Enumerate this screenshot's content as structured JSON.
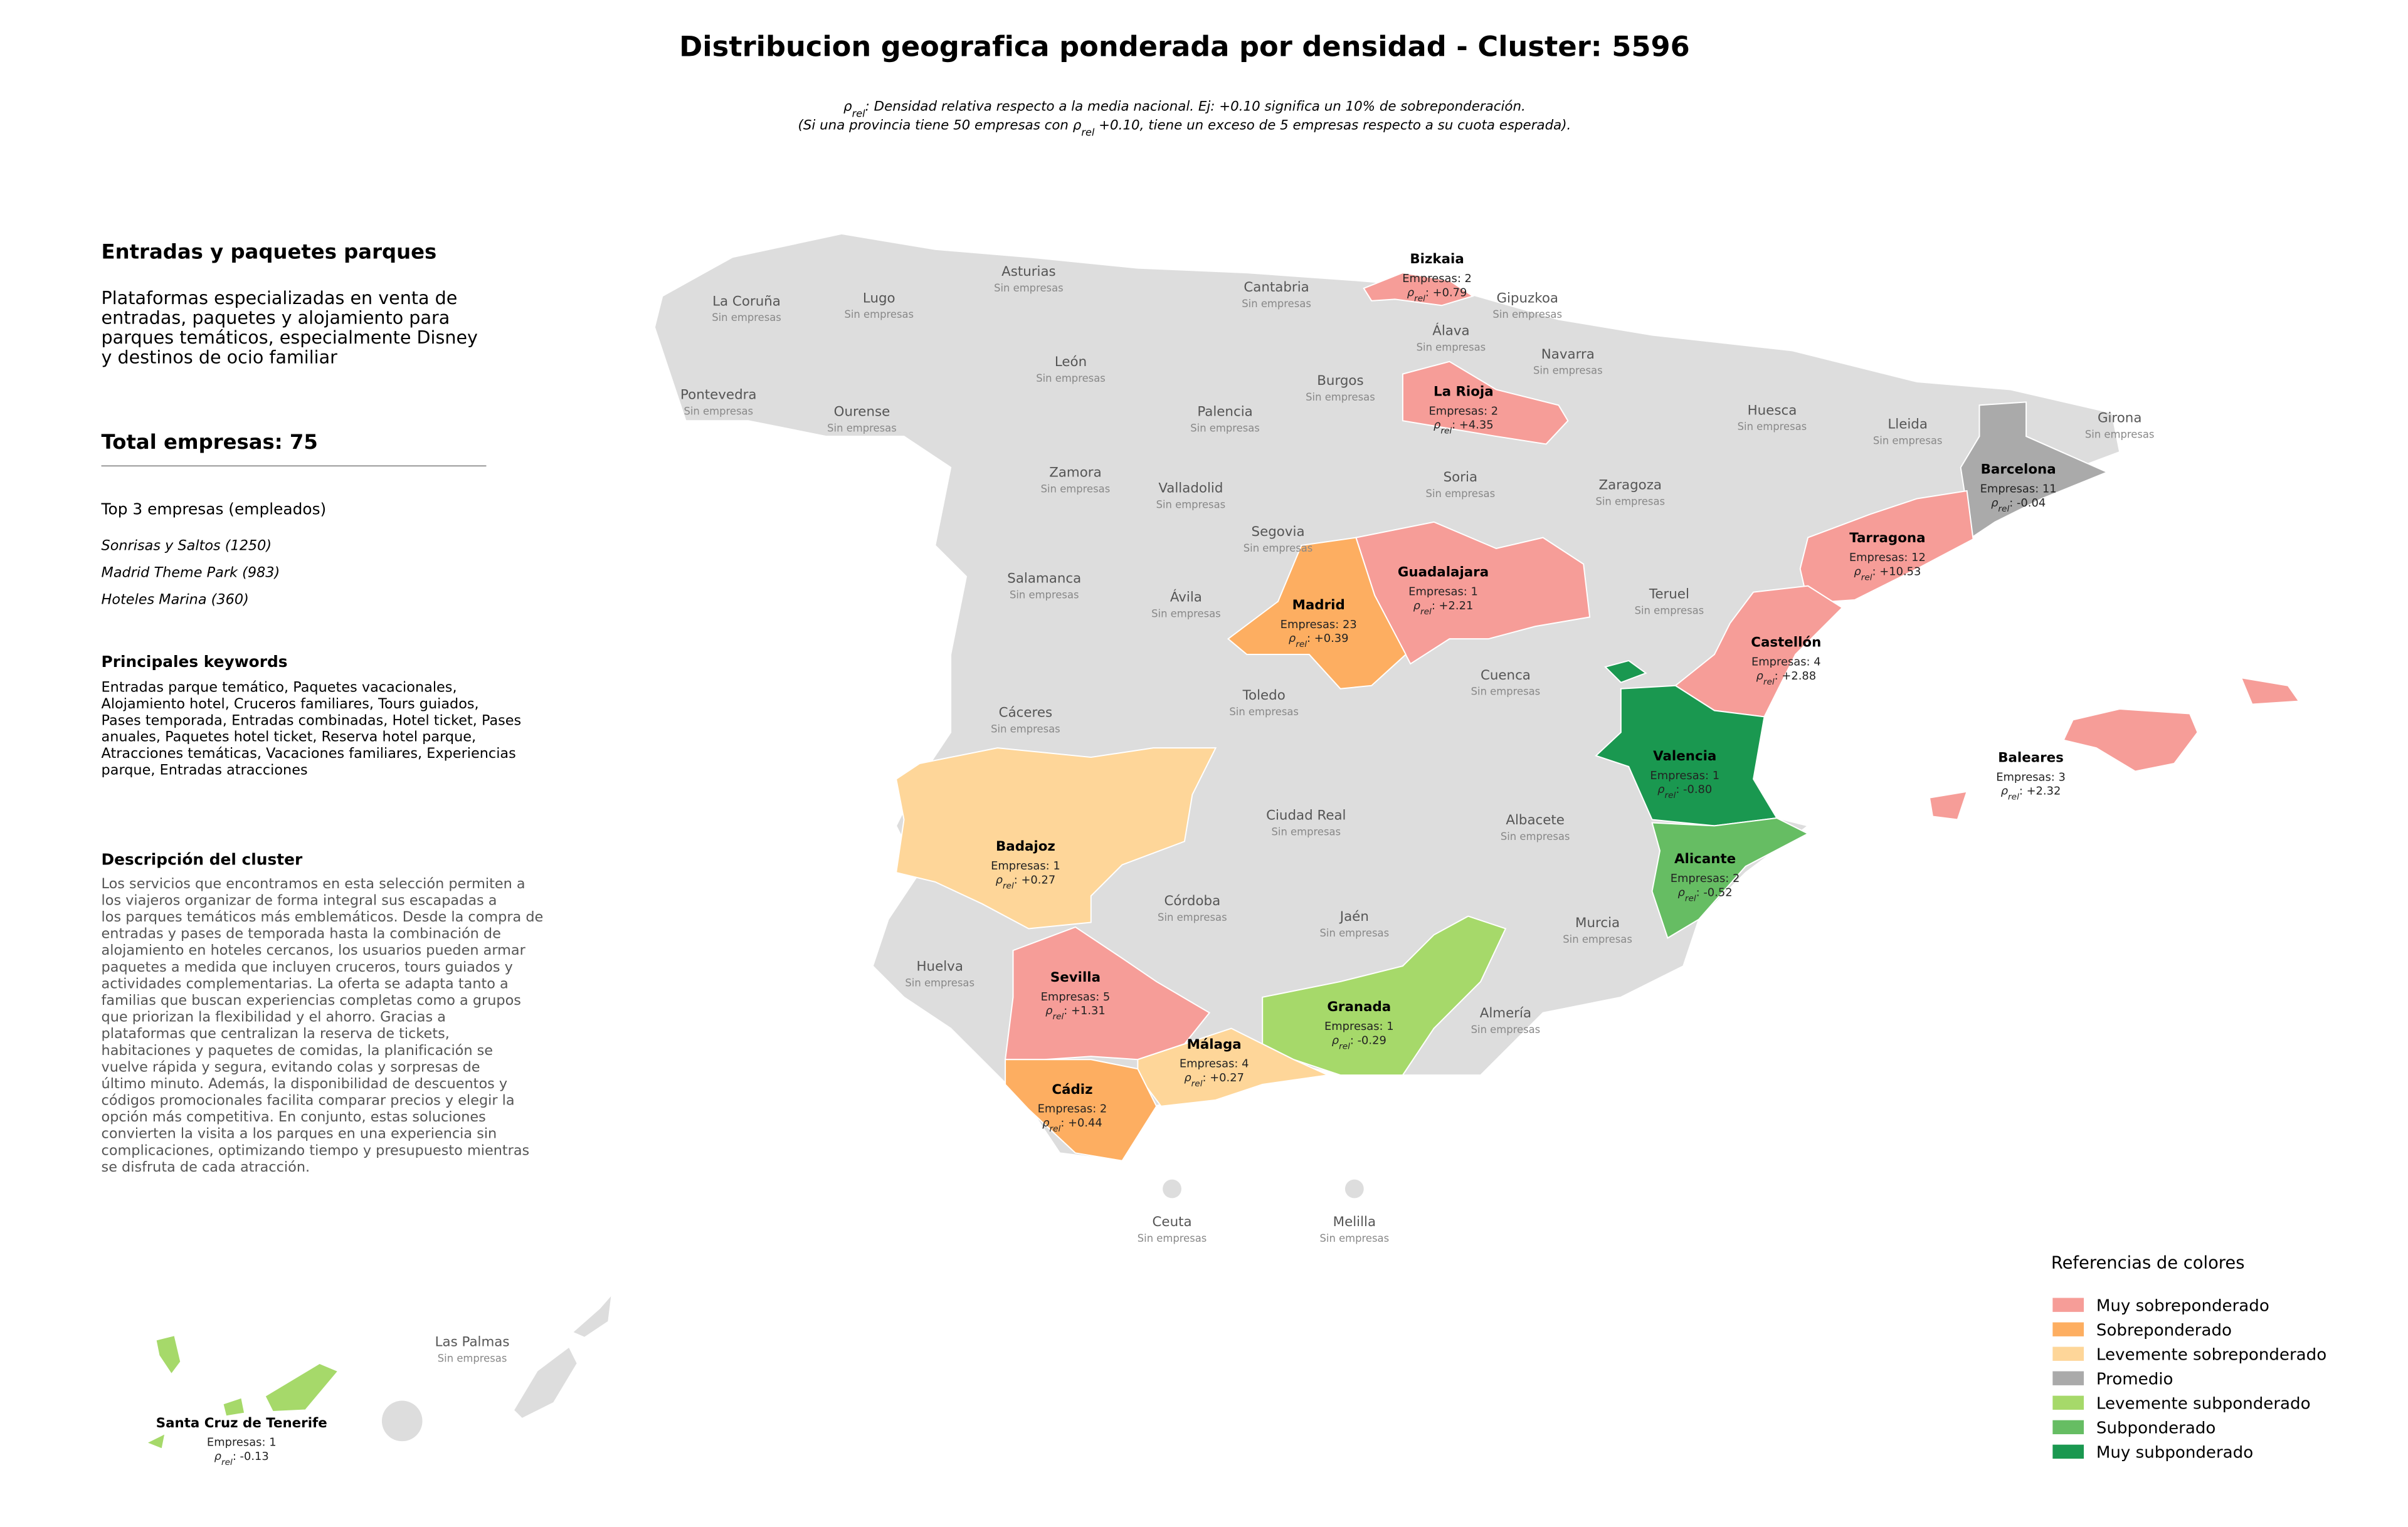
{
  "header": {
    "title": "Distribucion geografica ponderada por densidad - Cluster: 5596",
    "subtitle_lines": [
      [
        "",
        "ρ",
        "rel",
        ": Densidad relativa respecto a la media nacional. Ej: +0.10 significa un 10% de sobreponderación."
      ],
      [
        "(Si una provincia tiene 50 empresas con ",
        "ρ",
        "rel",
        " +0.10, tiene un exceso de 5 empresas respecto a su cuota esperada)."
      ]
    ]
  },
  "panel": {
    "heading": "Entradas y paquetes parques",
    "summary_lines": [
      "Plataformas especializadas en venta de",
      "entradas, paquetes y alojamiento para",
      "parques temáticos, especialmente Disney",
      "y destinos de ocio familiar"
    ],
    "total": "Total empresas: 75",
    "top_heading": "Top 3 empresas (empleados)",
    "top_items": [
      "Sonrisas y Saltos (1250)",
      "Madrid Theme Park (983)",
      "Hoteles Marina (360)"
    ],
    "keywords_heading": "Principales keywords",
    "keywords_lines": [
      "Entradas parque temático, Paquetes vacacionales,",
      "Alojamiento hotel, Cruceros familiares, Tours guiados,",
      "Pases temporada, Entradas combinadas, Hotel ticket, Pases",
      "anuales, Paquetes hotel ticket, Reserva hotel parque,",
      "Atracciones temáticas, Vacaciones familiares, Experiencias",
      "parque, Entradas atracciones"
    ],
    "description_heading": "Descripción del cluster",
    "description_lines": [
      "Los servicios que encontramos en esta selección permiten a",
      "los viajeros organizar de forma integral sus escapadas a",
      "los parques temáticos más emblemáticos. Desde la compra de",
      "entradas y pases de temporada hasta la combinación de",
      "alojamiento en hoteles cercanos, los usuarios pueden armar",
      "paquetes a medida que incluyen cruceros, tours guiados y",
      "actividades complementarias. La oferta se adapta tanto a",
      "familias que buscan experiencias completas como a grupos",
      "que priorizan la flexibilidad y el ahorro. Gracias a",
      "plataformas que centralizan la reserva de tickets,",
      "habitaciones y paquetes de comidas, la planificación se",
      "vuelve rápida y segura, evitando colas y sorpresas de",
      "último minuto. Además, la disponibilidad de descuentos y",
      "códigos promocionales facilita comparar precios y elegir la",
      "opción más competitiva. En conjunto, estas soluciones",
      "convierten la visita a los parques en una experiencia sin",
      "complicaciones, optimizando tiempo y presupuesto mientras",
      "se disfruta de cada atracción."
    ]
  },
  "map": {
    "rho_symbol": "ρ",
    "rho_sub": "rel",
    "provinces": [
      {
        "name": "La Coruña",
        "status": "Sin empresas"
      },
      {
        "name": "Lugo",
        "status": "Sin empresas"
      },
      {
        "name": "Asturias",
        "status": "Sin empresas"
      },
      {
        "name": "Cantabria",
        "status": "Sin empresas"
      },
      {
        "name": "Gipuzkoa",
        "status": "Sin empresas"
      },
      {
        "name": "Álava",
        "status": "Sin empresas"
      },
      {
        "name": "Navarra",
        "status": "Sin empresas"
      },
      {
        "name": "Pontevedra",
        "status": "Sin empresas"
      },
      {
        "name": "León",
        "status": "Sin empresas"
      },
      {
        "name": "Burgos",
        "status": "Sin empresas"
      },
      {
        "name": "Ourense",
        "status": "Sin empresas"
      },
      {
        "name": "Palencia",
        "status": "Sin empresas"
      },
      {
        "name": "Huesca",
        "status": "Sin empresas"
      },
      {
        "name": "Lleida",
        "status": "Sin empresas"
      },
      {
        "name": "Girona",
        "status": "Sin empresas"
      },
      {
        "name": "Zamora",
        "status": "Sin empresas"
      },
      {
        "name": "Soria",
        "status": "Sin empresas"
      },
      {
        "name": "Zaragoza",
        "status": "Sin empresas"
      },
      {
        "name": "Valladolid",
        "status": "Sin empresas"
      },
      {
        "name": "Segovia",
        "status": "Sin empresas"
      },
      {
        "name": "Salamanca",
        "status": "Sin empresas"
      },
      {
        "name": "Ávila",
        "status": "Sin empresas"
      },
      {
        "name": "Teruel",
        "status": "Sin empresas"
      },
      {
        "name": "Cuenca",
        "status": "Sin empresas"
      },
      {
        "name": "Toledo",
        "status": "Sin empresas"
      },
      {
        "name": "Cáceres",
        "status": "Sin empresas"
      },
      {
        "name": "Ciudad Real",
        "status": "Sin empresas"
      },
      {
        "name": "Albacete",
        "status": "Sin empresas"
      },
      {
        "name": "Córdoba",
        "status": "Sin empresas"
      },
      {
        "name": "Jaén",
        "status": "Sin empresas"
      },
      {
        "name": "Murcia",
        "status": "Sin empresas"
      },
      {
        "name": "Huelva",
        "status": "Sin empresas"
      },
      {
        "name": "Almería",
        "status": "Sin empresas"
      },
      {
        "name": "Ceuta",
        "status": "Sin empresas"
      },
      {
        "name": "Melilla",
        "status": "Sin empresas"
      },
      {
        "name": "Las Palmas",
        "status": "Sin empresas"
      },
      {
        "name": "Bizkaia",
        "empresas": "Empresas: 2",
        "rho_text": ": +0.79",
        "category": 0
      },
      {
        "name": "La Rioja",
        "empresas": "Empresas: 2",
        "rho_text": ": +4.35",
        "category": 0
      },
      {
        "name": "Barcelona",
        "empresas": "Empresas: 11",
        "rho_text": ": -0.04",
        "category": 3
      },
      {
        "name": "Tarragona",
        "empresas": "Empresas: 12",
        "rho_text": ": +10.53",
        "category": 0
      },
      {
        "name": "Guadalajara",
        "empresas": "Empresas: 1",
        "rho_text": ": +2.21",
        "category": 0
      },
      {
        "name": "Madrid",
        "empresas": "Empresas: 23",
        "rho_text": ": +0.39",
        "category": 1
      },
      {
        "name": "Castellón",
        "empresas": "Empresas: 4",
        "rho_text": ": +2.88",
        "category": 0
      },
      {
        "name": "Valencia",
        "empresas": "Empresas: 1",
        "rho_text": ": -0.80",
        "category": 6
      },
      {
        "name": "Baleares",
        "empresas": "Empresas: 3",
        "rho_text": ": +2.32",
        "category": 0
      },
      {
        "name": "Alicante",
        "empresas": "Empresas: 2",
        "rho_text": ": -0.52",
        "category": 5
      },
      {
        "name": "Badajoz",
        "empresas": "Empresas: 1",
        "rho_text": ": +0.27",
        "category": 2
      },
      {
        "name": "Sevilla",
        "empresas": "Empresas: 5",
        "rho_text": ": +1.31",
        "category": 0
      },
      {
        "name": "Granada",
        "empresas": "Empresas: 1",
        "rho_text": ": -0.29",
        "category": 4
      },
      {
        "name": "Málaga",
        "empresas": "Empresas: 4",
        "rho_text": ": +0.27",
        "category": 2
      },
      {
        "name": "Cádiz",
        "empresas": "Empresas: 2",
        "rho_text": ": +0.44",
        "category": 1
      },
      {
        "name": "Santa Cruz de Tenerife",
        "empresas": "Empresas: 1",
        "rho_text": ": -0.13",
        "category": 4
      }
    ]
  },
  "legend": {
    "title": "Referencias de colores",
    "entries": [
      {
        "name": "Muy sobreponderado",
        "color": "#f69d98"
      },
      {
        "name": "Sobreponderado",
        "color": "#fdae61"
      },
      {
        "name": "Levemente sobreponderado",
        "color": "#fed699"
      },
      {
        "name": "Promedio",
        "color": "#aaaaaa"
      },
      {
        "name": "Levemente subponderado",
        "color": "#a6d96a"
      },
      {
        "name": "Subponderado",
        "color": "#66bd63"
      },
      {
        "name": "Muy subponderado",
        "color": "#1a9850"
      }
    ]
  }
}
